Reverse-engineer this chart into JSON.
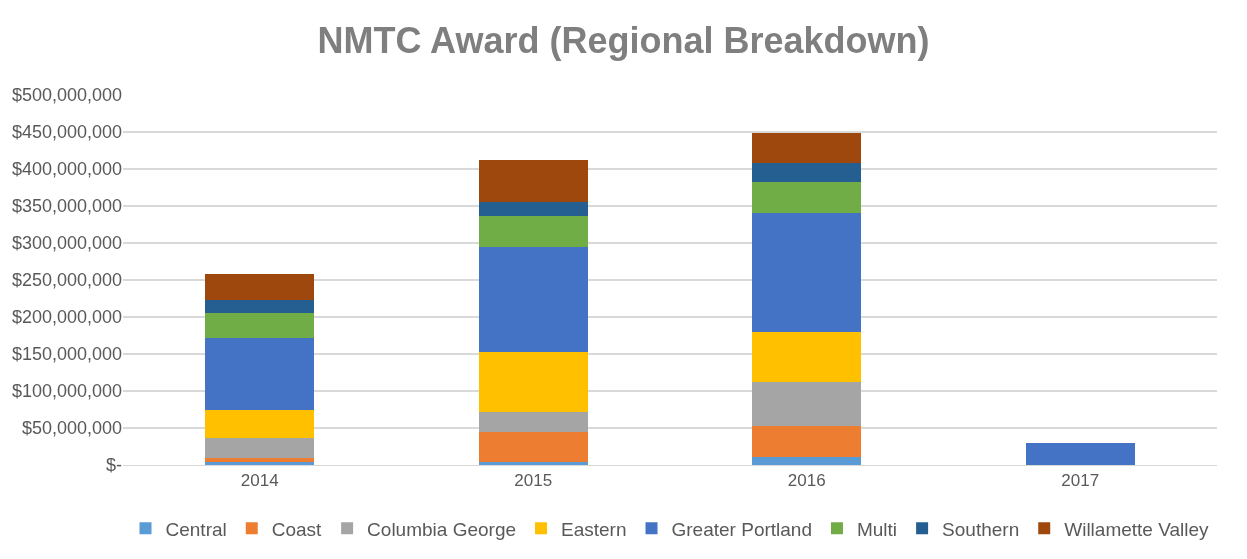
{
  "chart_data": {
    "type": "bar",
    "title": "NMTC Award (Regional Breakdown)",
    "stacked": true,
    "categories": [
      "2014",
      "2015",
      "2016",
      "2017"
    ],
    "series": [
      {
        "name": "Central",
        "color": "#5b9bd5",
        "values": [
          4000000,
          4000000,
          11000000,
          0
        ]
      },
      {
        "name": "Coast",
        "color": "#ed7d31",
        "values": [
          6000000,
          41000000,
          42000000,
          0
        ]
      },
      {
        "name": "Columbia George",
        "color": "#a5a5a5",
        "values": [
          27000000,
          27000000,
          59000000,
          0
        ]
      },
      {
        "name": "Eastern",
        "color": "#ffc000",
        "values": [
          38000000,
          81000000,
          68000000,
          0
        ]
      },
      {
        "name": "Greater Portland",
        "color": "#4472c4",
        "values": [
          97000000,
          142000000,
          161000000,
          30000000
        ]
      },
      {
        "name": "Multi",
        "color": "#70ad47",
        "values": [
          34000000,
          42000000,
          41000000,
          0
        ]
      },
      {
        "name": "Southern",
        "color": "#255e91",
        "values": [
          17000000,
          18000000,
          26000000,
          0
        ]
      },
      {
        "name": "Willamette Valley",
        "color": "#9e480e",
        "values": [
          35000000,
          57000000,
          41000000,
          0
        ]
      }
    ],
    "ylim": [
      0,
      500000000
    ],
    "yticks": [
      {
        "value": 0,
        "label": "$-"
      },
      {
        "value": 50000000,
        "label": "$50,000,000"
      },
      {
        "value": 100000000,
        "label": "$100,000,000"
      },
      {
        "value": 150000000,
        "label": "$150,000,000"
      },
      {
        "value": 200000000,
        "label": "$200,000,000"
      },
      {
        "value": 250000000,
        "label": "$250,000,000"
      },
      {
        "value": 300000000,
        "label": "$300,000,000"
      },
      {
        "value": 350000000,
        "label": "$350,000,000"
      },
      {
        "value": 400000000,
        "label": "$400,000,000"
      },
      {
        "value": 450000000,
        "label": "$450,000,000"
      },
      {
        "value": 500000000,
        "label": "$500,000,000"
      }
    ],
    "grid": "y",
    "legend": "bottom"
  }
}
